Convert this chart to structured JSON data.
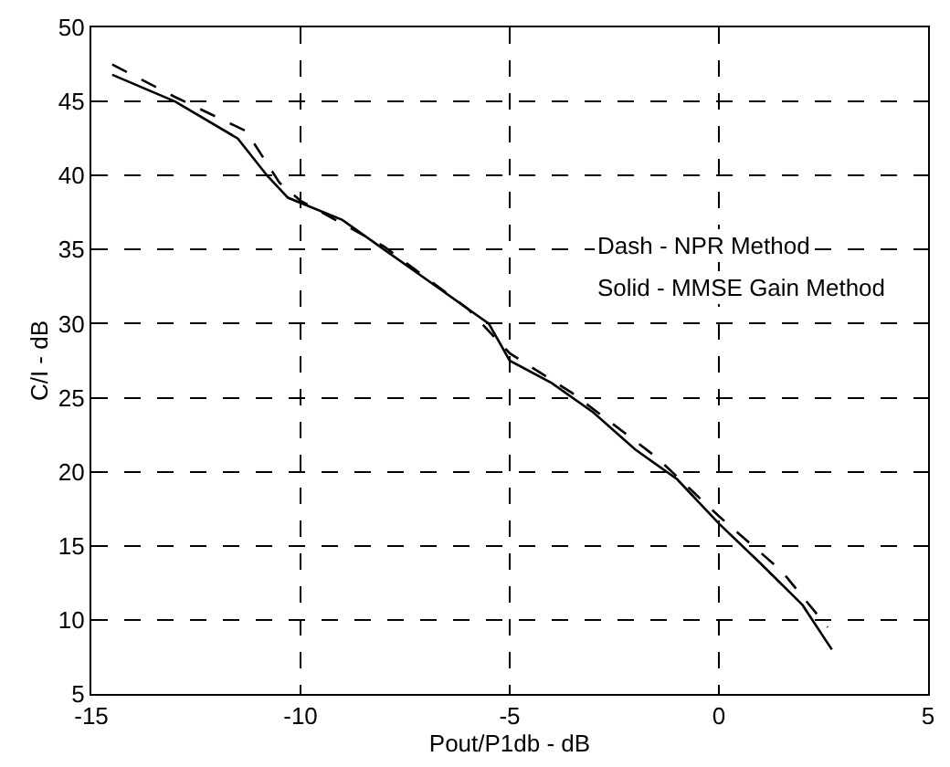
{
  "chart_data": {
    "type": "line",
    "xlabel": "Pout/P1db - dB",
    "ylabel": "C/I - dB",
    "xlim": [
      -15,
      5
    ],
    "xticks": [
      -15,
      -10,
      -5,
      0,
      5
    ],
    "ylim": [
      5,
      50
    ],
    "yticks": [
      5,
      10,
      15,
      20,
      25,
      30,
      35,
      40,
      45,
      50
    ],
    "grid": true,
    "legend": false,
    "annotations": [
      "Dash - NPR Method",
      "Solid - MMSE Gain Method"
    ],
    "series": [
      {
        "color": "#000000",
        "line_style": "solid",
        "x": [
          -14.5,
          -13,
          -11.5,
          -10.8,
          -10.3,
          -9,
          -8,
          -7,
          -6,
          -5.5,
          -5,
          -4,
          -3,
          -2,
          -1,
          0,
          1,
          2,
          2.7
        ],
        "values": [
          46.8,
          45,
          42.5,
          40,
          38.5,
          37,
          35,
          33,
          31,
          30,
          27.5,
          26,
          24,
          21.5,
          19.5,
          16.5,
          13.8,
          11,
          8
        ]
      },
      {
        "color": "#000000",
        "line_style": "dashed",
        "x": [
          -14.5,
          -13,
          -11.3,
          -10.5,
          -10,
          -8,
          -6,
          -5,
          -3.5,
          -1.5,
          0,
          1.5,
          2.6
        ],
        "values": [
          47.5,
          45.3,
          43,
          39.5,
          38.3,
          35.2,
          31,
          28,
          25.3,
          21,
          17,
          13.3,
          9.5
        ]
      }
    ]
  }
}
